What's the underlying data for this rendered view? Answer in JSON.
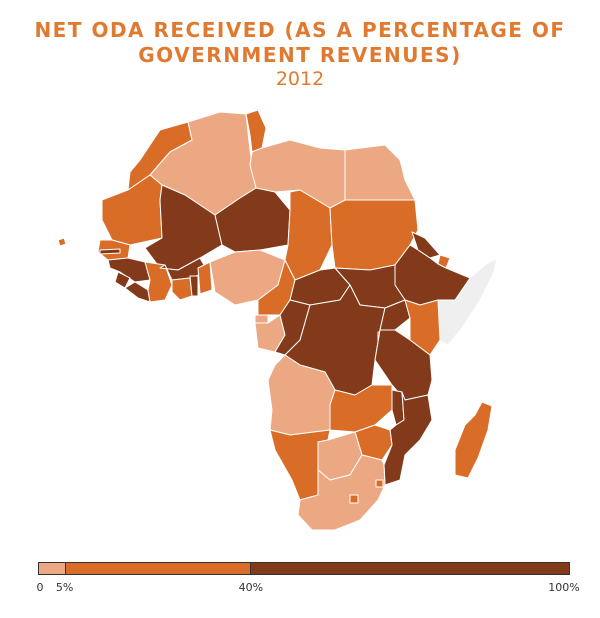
{
  "header": {
    "title_line1": "NET ODA RECEIVED (AS A PERCENTAGE OF",
    "title_line2": "GOVERNMENT REVENUES)",
    "year": "2012"
  },
  "colors": {
    "low": "#eba882",
    "mid": "#d96c27",
    "high": "#823a1b",
    "no_data": "#efefef",
    "border": "#ffffff"
  },
  "map": {
    "region": "Africa",
    "categories": [
      {
        "range": "0–5%",
        "color_key": "low",
        "countries": [
          "Algeria",
          "Libya",
          "Egypt",
          "Nigeria",
          "Gabon",
          "Angola",
          "Botswana",
          "South Africa",
          "Equatorial Guinea"
        ]
      },
      {
        "range": "5–40%",
        "color_key": "mid",
        "countries": [
          "Morocco",
          "Tunisia",
          "Mauritania",
          "Senegal",
          "Chad",
          "Sudan",
          "Cameroon",
          "Kenya",
          "Zambia",
          "Zimbabwe",
          "Namibia",
          "Madagascar",
          "Ghana",
          "Benin",
          "Cote d'Ivoire",
          "Lesotho",
          "Swaziland",
          "Djibouti",
          "Cape Verde"
        ]
      },
      {
        "range": "40–100%",
        "color_key": "high",
        "countries": [
          "Mali",
          "Niger",
          "Burkina Faso",
          "Guinea",
          "Sierra Leone",
          "Liberia",
          "Central African Republic",
          "South Sudan",
          "Ethiopia",
          "Democratic Republic of the Congo",
          "Congo",
          "Uganda",
          "Rwanda",
          "Burundi",
          "Tanzania",
          "Malawi",
          "Mozambique",
          "Togo",
          "Gambia",
          "Guinea-Bissau",
          "Eritrea"
        ]
      },
      {
        "range": "no data",
        "color_key": "no_data",
        "countries": [
          "Somalia"
        ]
      }
    ]
  },
  "legend": {
    "bins": [
      {
        "from": 0,
        "to": 5,
        "color_key": "low"
      },
      {
        "from": 5,
        "to": 40,
        "color_key": "mid"
      },
      {
        "from": 40,
        "to": 100,
        "color_key": "high"
      }
    ],
    "ticks": [
      {
        "value": 0,
        "label": "0"
      },
      {
        "value": 5,
        "label": "5%"
      },
      {
        "value": 40,
        "label": "40%"
      },
      {
        "value": 100,
        "label": "100%"
      }
    ]
  }
}
